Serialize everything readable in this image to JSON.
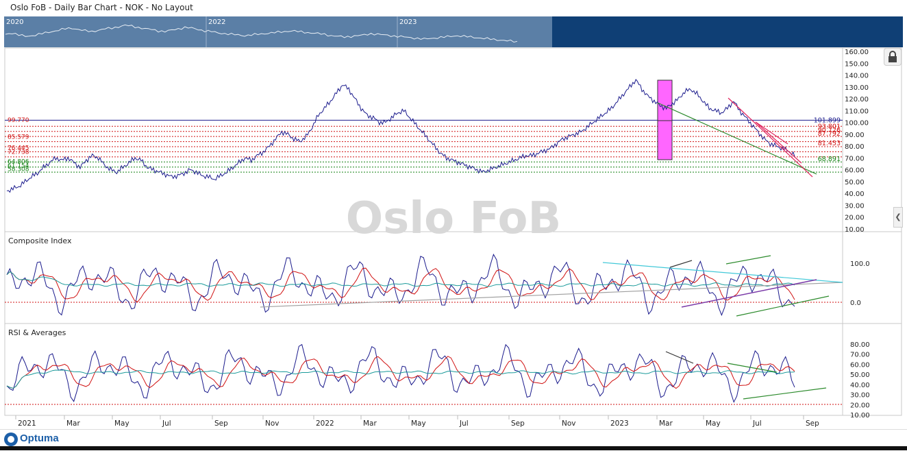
{
  "window": {
    "title": "Oslo FoB - Daily Bar Chart - NOK - No Layout"
  },
  "navigator": {
    "year_labels": [
      "2020",
      "2022",
      "2023"
    ]
  },
  "watermark": "Oslo FoB",
  "footer": {
    "brand": "Optuma"
  },
  "colors": {
    "price": "#1a1a8c",
    "ma_red": "#d01010",
    "ma_teal": "#1a9a9a",
    "fib": "#d01010",
    "fib_green": "#108010",
    "highlight": "#ff66ff",
    "nav_bg": "#5b7fa6",
    "nav_dark": "#0f3f75"
  },
  "chart_data": [
    {
      "type": "line",
      "panel": "price",
      "ylim": [
        10,
        160
      ],
      "y_ticks": [
        "160.00",
        "150.00",
        "140.00",
        "130.00",
        "120.00",
        "110.00",
        "100.00",
        "90.00",
        "80.00",
        "70.00",
        "60.00",
        "50.00",
        "40.00",
        "30.00",
        "20.00",
        "10.00"
      ],
      "x_ticks": [
        "2021",
        "Mar",
        "May",
        "Jul",
        "Sep",
        "Nov",
        "2022",
        "Mar",
        "May",
        "Jul",
        "Sep",
        "Nov",
        "2023",
        "Mar",
        "May",
        "Jul",
        "Sep"
      ],
      "series": [
        {
          "values": [
            42,
            44,
            46,
            50,
            54,
            57,
            62,
            66,
            70,
            68,
            70,
            66,
            62,
            68,
            72,
            70,
            64,
            60,
            58,
            62,
            66,
            70,
            68,
            62,
            60,
            58,
            56,
            54,
            55,
            57,
            60,
            58,
            55,
            54,
            52,
            55,
            58,
            62,
            66,
            70,
            68,
            72,
            75,
            80,
            86,
            92,
            90,
            86,
            84,
            88,
            96,
            106,
            112,
            118,
            125,
            132,
            128,
            120,
            112,
            106,
            104,
            100,
            100,
            104,
            108,
            110,
            104,
            98,
            92,
            86,
            80,
            74,
            70,
            68,
            66,
            64,
            62,
            60,
            58,
            60,
            62,
            64,
            66,
            68,
            70,
            72,
            72,
            74,
            76,
            78,
            82,
            86,
            88,
            90,
            92,
            96,
            100,
            104,
            108,
            112,
            118,
            124,
            130,
            136,
            128,
            122,
            118,
            114,
            112,
            116,
            120,
            126,
            128,
            124,
            118,
            112,
            110,
            108,
            112,
            118,
            110,
            104,
            98,
            92,
            86,
            82,
            80,
            78,
            76,
            72
          ]
        }
      ],
      "horizontal_levels": [
        {
          "label": "99.770",
          "value": 99.77
        },
        {
          "label": "85.579",
          "value": 85.58
        },
        {
          "label": "76.445",
          "value": 76.45
        },
        {
          "label": "72.738",
          "value": 72.74
        },
        {
          "label": "64.806",
          "value": 64.81
        },
        {
          "label": "61.154",
          "value": 61.15
        },
        {
          "label": "58.308",
          "value": 58.31
        }
      ],
      "right_labels": [
        {
          "label": "101.899",
          "value": 101.9
        },
        {
          "label": "93.801",
          "value": 96.5
        },
        {
          "label": "90.726",
          "value": 93.5
        },
        {
          "label": "87.792",
          "value": 90.5
        },
        {
          "label": "81.453",
          "value": 82.5
        },
        {
          "label": "68.891",
          "value": 69.0
        }
      ]
    },
    {
      "type": "line",
      "panel": "indicator",
      "title": "Composite Index",
      "y_ticks": [
        "100.0",
        "0.0"
      ]
    },
    {
      "type": "line",
      "panel": "indicator",
      "title": "RSI & Averages",
      "y_ticks": [
        "80.00",
        "70.00",
        "60.00",
        "50.00",
        "40.00",
        "30.00",
        "20.00",
        "10.00"
      ]
    }
  ]
}
